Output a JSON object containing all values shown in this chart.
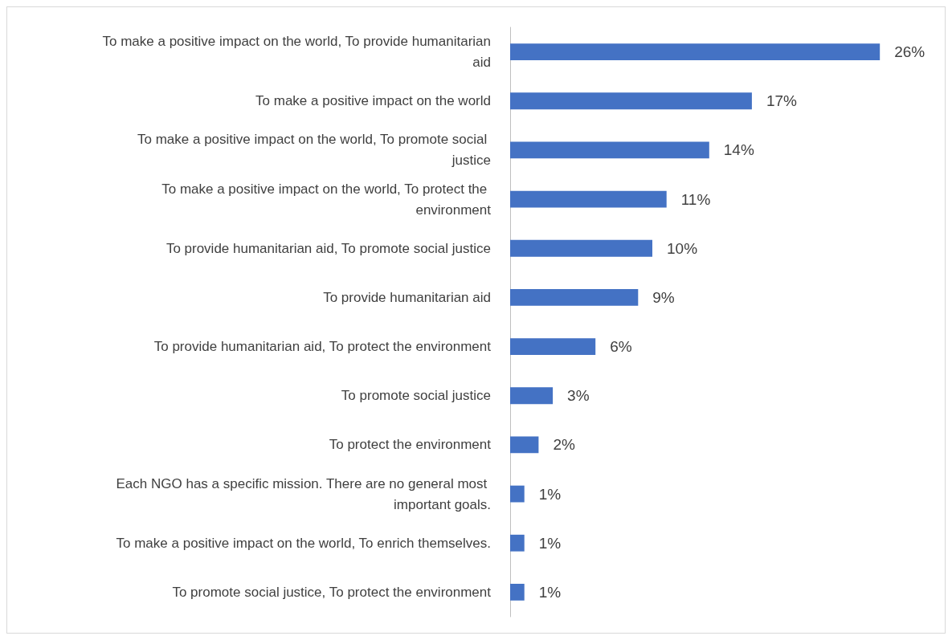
{
  "chart_data": {
    "type": "bar",
    "orientation": "horizontal",
    "color": "#4472c4",
    "tick_labels": "y",
    "categories": [
      "To make a positive impact on the world, To provide humanitarian aid",
      "To make a positive impact on the world",
      "To make a positive impact on the world, To promote social justice",
      "To make a positive impact on the world, To protect the environment",
      "To provide humanitarian aid, To promote social justice",
      "To provide humanitarian aid",
      "To provide humanitarian aid, To protect the environment",
      "To promote social justice",
      "To protect the environment",
      "Each NGO has a specific mission. There are no general most important goals.",
      "To make a positive impact on the world, To enrich themselves.",
      "To promote social justice, To protect the environment"
    ],
    "values": [
      26,
      17,
      14,
      11,
      10,
      9,
      6,
      3,
      2,
      1,
      1,
      1
    ],
    "value_labels": [
      "26%",
      "17%",
      "14%",
      "11%",
      "10%",
      "9%",
      "6%",
      "3%",
      "2%",
      "1%",
      "1%",
      "1%"
    ]
  }
}
